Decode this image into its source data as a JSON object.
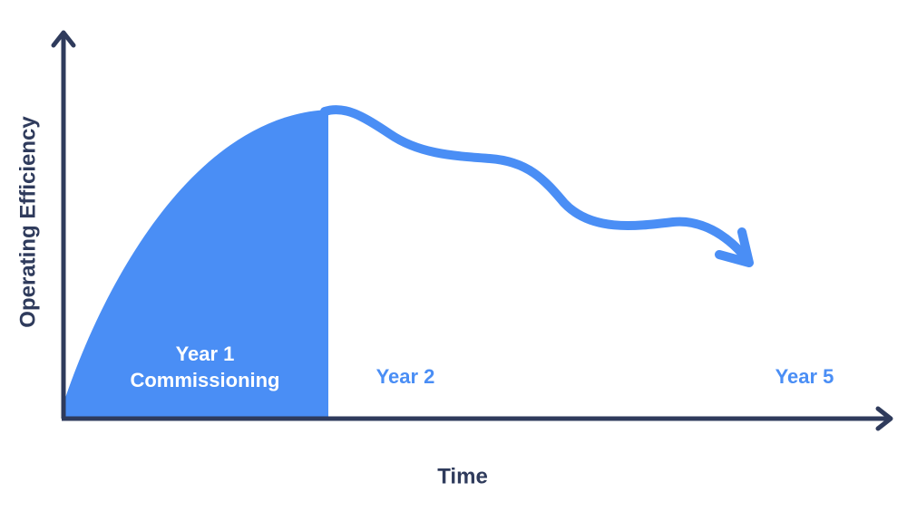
{
  "axes": {
    "y_label": "Operating Efficiency",
    "x_label": "Time"
  },
  "phases": [
    {
      "label": "Year 1",
      "sublabel": "Commissioning"
    },
    {
      "label": "Year 2"
    },
    {
      "label": "Year 5"
    }
  ]
}
